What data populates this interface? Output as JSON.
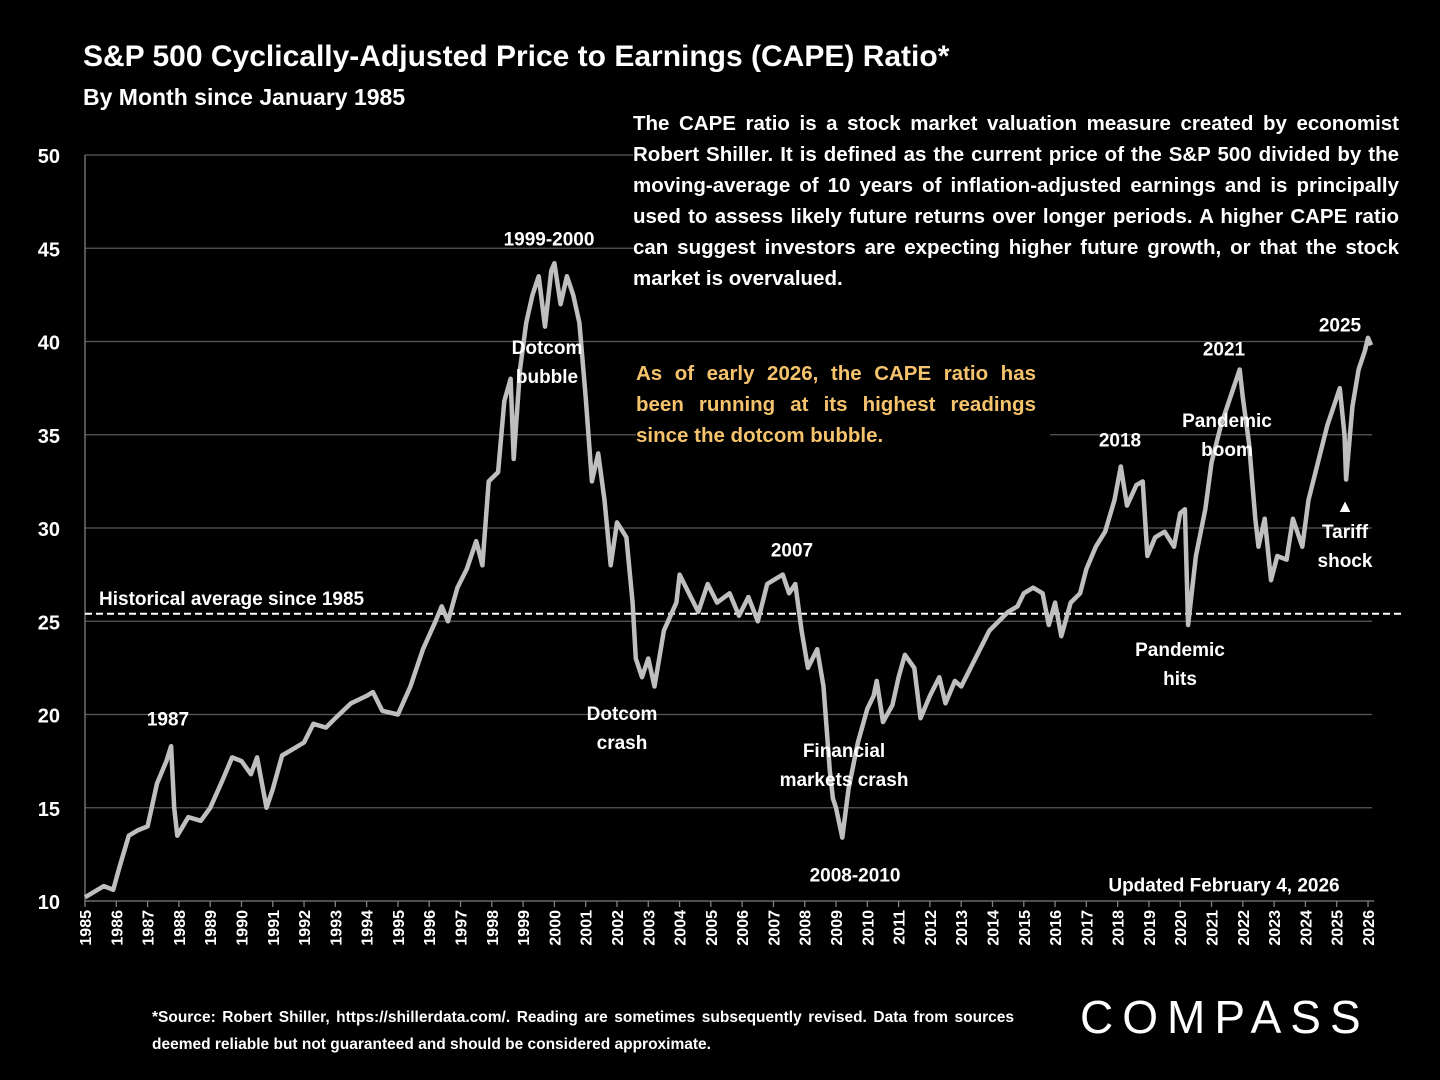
{
  "chart_data": {
    "type": "line",
    "title": "S&P 500 Cyclically-Adjusted Price to Earnings (CAPE) Ratio*",
    "subtitle": "By Month since January 1985",
    "description": "The CAPE ratio is a stock market valuation measure created by economist Robert Shiller. It is defined as the current price of the S&P 500 divided by the moving-average of 10 years of inflation-adjusted earnings and is principally used to assess likely future returns over longer periods. A higher CAPE ratio can suggest investors are expecting higher future growth, or that the stock market is overvalued.",
    "note": "As of early 2026, the CAPE ratio has been running at its highest readings since the dotcom bubble.",
    "updated": "Updated February 4, 2026",
    "footnote": "*Source: Robert Shiller, https://shillerdata.com/. Reading are sometimes subsequently revised. Data from sources deemed reliable but not guaranteed and should be considered approximate.",
    "logo": "COMPASS",
    "annotations": [
      "1987",
      "1999-2000",
      "Dotcom bubble",
      "Dotcom crash",
      "2007",
      "Financial markets crash",
      "2008-2010",
      "2018",
      "2021",
      "Pandemic boom",
      "Pandemic hits",
      "2025",
      "Tariff shock"
    ],
    "reference_line": {
      "label": "Historical average since 1985",
      "value": 25.4
    },
    "xlim": [
      1985,
      2026.2
    ],
    "xticks": [
      1985,
      1986,
      1987,
      1988,
      1989,
      1990,
      1991,
      1992,
      1993,
      1994,
      1995,
      1996,
      1997,
      1998,
      1999,
      2000,
      2001,
      2002,
      2003,
      2004,
      2005,
      2006,
      2007,
      2008,
      2009,
      2010,
      2011,
      2012,
      2013,
      2014,
      2015,
      2016,
      2017,
      2018,
      2019,
      2020,
      2021,
      2022,
      2023,
      2024,
      2025,
      2026
    ],
    "ylim": [
      10,
      50
    ],
    "yticks": [
      10,
      15,
      20,
      25,
      30,
      35,
      40,
      45,
      50
    ],
    "grid": true,
    "series": [
      {
        "name": "CAPE ratio",
        "color": "#bfbfbf",
        "x": [
          1985.0,
          1985.3,
          1985.6,
          1985.9,
          1986.1,
          1986.4,
          1986.7,
          1987.0,
          1987.3,
          1987.6,
          1987.75,
          1987.85,
          1987.95,
          1988.3,
          1988.7,
          1989.0,
          1989.4,
          1989.7,
          1990.0,
          1990.3,
          1990.5,
          1990.8,
          1991.0,
          1991.3,
          1991.7,
          1992.0,
          1992.3,
          1992.7,
          1993.0,
          1993.5,
          1994.0,
          1994.2,
          1994.5,
          1995.0,
          1995.4,
          1995.8,
          1996.2,
          1996.4,
          1996.6,
          1996.9,
          1997.2,
          1997.5,
          1997.7,
          1997.9,
          1998.2,
          1998.4,
          1998.6,
          1998.7,
          1998.9,
          1999.1,
          1999.3,
          1999.5,
          1999.7,
          1999.9,
          2000.0,
          2000.2,
          2000.4,
          2000.6,
          2000.8,
          2001.0,
          2001.2,
          2001.4,
          2001.6,
          2001.8,
          2002.0,
          2002.3,
          2002.5,
          2002.6,
          2002.8,
          2003.0,
          2003.2,
          2003.5,
          2003.9,
          2004.0,
          2004.3,
          2004.6,
          2004.9,
          2005.2,
          2005.6,
          2005.9,
          2006.2,
          2006.5,
          2006.8,
          2007.0,
          2007.3,
          2007.5,
          2007.7,
          2007.9,
          2008.1,
          2008.4,
          2008.6,
          2008.8,
          2008.9,
          2009.0,
          2009.2,
          2009.4,
          2009.7,
          2010.0,
          2010.2,
          2010.3,
          2010.5,
          2010.8,
          2011.0,
          2011.2,
          2011.5,
          2011.7,
          2012.0,
          2012.3,
          2012.5,
          2012.8,
          2013.0,
          2013.3,
          2013.6,
          2013.9,
          2014.2,
          2014.5,
          2014.8,
          2015.0,
          2015.3,
          2015.6,
          2015.8,
          2016.0,
          2016.2,
          2016.5,
          2016.8,
          2017.0,
          2017.3,
          2017.6,
          2017.9,
          2018.1,
          2018.3,
          2018.6,
          2018.8,
          2018.95,
          2019.2,
          2019.5,
          2019.8,
          2020.0,
          2020.15,
          2020.25,
          2020.5,
          2020.8,
          2021.0,
          2021.3,
          2021.6,
          2021.9,
          2022.0,
          2022.2,
          2022.4,
          2022.5,
          2022.7,
          2022.9,
          2023.1,
          2023.4,
          2023.6,
          2023.9,
          2024.1,
          2024.4,
          2024.7,
          2024.9,
          2025.1,
          2025.25,
          2025.3,
          2025.5,
          2025.7,
          2025.9,
          2026.0,
          2026.1
        ],
        "values": [
          10.2,
          10.5,
          10.8,
          10.6,
          11.8,
          13.5,
          13.8,
          14.0,
          16.3,
          17.5,
          18.3,
          15.0,
          13.5,
          14.5,
          14.3,
          15.0,
          16.5,
          17.7,
          17.5,
          16.8,
          17.7,
          15.0,
          16.0,
          17.8,
          18.2,
          18.5,
          19.5,
          19.3,
          19.8,
          20.6,
          21.0,
          21.2,
          20.2,
          20.0,
          21.5,
          23.5,
          25.0,
          25.8,
          25.0,
          26.8,
          27.8,
          29.3,
          28.0,
          32.5,
          33.0,
          36.8,
          38.0,
          33.7,
          38.5,
          41.0,
          42.5,
          43.5,
          40.8,
          43.8,
          44.2,
          42.0,
          43.5,
          42.5,
          41.0,
          37.0,
          32.5,
          34.0,
          31.5,
          28.0,
          30.3,
          29.5,
          26.0,
          23.0,
          22.0,
          23.0,
          21.5,
          24.5,
          26.0,
          27.5,
          26.5,
          25.5,
          27.0,
          26.0,
          26.5,
          25.3,
          26.3,
          25.0,
          27.0,
          27.2,
          27.5,
          26.5,
          27.0,
          24.5,
          22.5,
          23.5,
          21.5,
          17.0,
          15.5,
          15.0,
          13.4,
          16.0,
          18.5,
          20.3,
          21.0,
          21.8,
          19.6,
          20.5,
          22.0,
          23.2,
          22.5,
          19.8,
          21.0,
          22.0,
          20.6,
          21.8,
          21.5,
          22.5,
          23.5,
          24.5,
          25.0,
          25.5,
          25.8,
          26.5,
          26.8,
          26.5,
          24.8,
          26.0,
          24.2,
          26.0,
          26.5,
          27.8,
          29.0,
          29.8,
          31.5,
          33.3,
          31.2,
          32.3,
          32.5,
          28.5,
          29.5,
          29.8,
          29.0,
          30.8,
          31.0,
          24.8,
          28.5,
          31.0,
          33.5,
          35.5,
          37.0,
          38.5,
          37.0,
          34.5,
          30.5,
          29.0,
          30.5,
          27.2,
          28.5,
          28.3,
          30.5,
          29.0,
          31.5,
          33.5,
          35.5,
          36.5,
          37.5,
          35.0,
          32.6,
          36.5,
          38.5,
          39.5,
          40.2,
          39.8
        ]
      }
    ]
  }
}
